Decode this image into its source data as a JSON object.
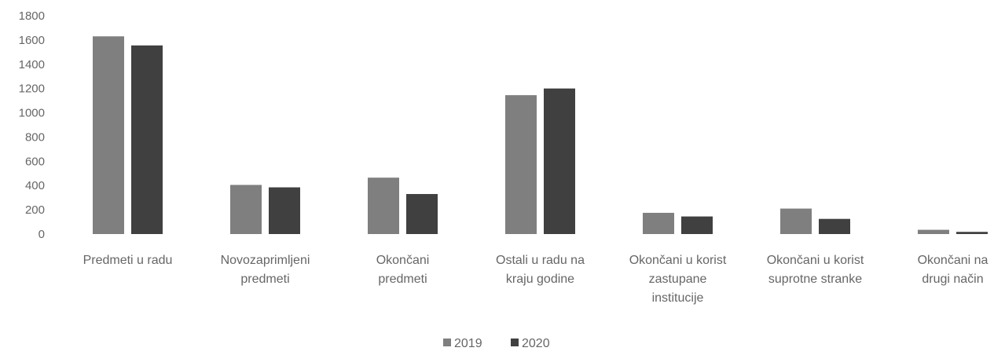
{
  "chart_data": {
    "type": "bar",
    "title": "",
    "xlabel": "",
    "ylabel": "",
    "ylim": [
      0,
      1800
    ],
    "yticks": [
      0,
      200,
      400,
      600,
      800,
      1000,
      1200,
      1400,
      1600,
      1800
    ],
    "grid": false,
    "legend": "bottom",
    "categories": [
      [
        "Predmeti u radu"
      ],
      [
        "Novozaprimljeni",
        "predmeti"
      ],
      [
        "Okončani",
        "predmeti"
      ],
      [
        "Ostali u radu na",
        "kraju godine"
      ],
      [
        "Okončani u korist",
        "zastupane",
        "institucije"
      ],
      [
        "Okončani u korist",
        "suprotne stranke"
      ],
      [
        "Okončani na",
        "drugi način"
      ]
    ],
    "series": [
      {
        "name": "2019",
        "color": "#7f7f7f",
        "values": [
          1630,
          405,
          465,
          1145,
          175,
          210,
          35
        ]
      },
      {
        "name": "2020",
        "color": "#404040",
        "values": [
          1555,
          385,
          330,
          1200,
          145,
          125,
          18
        ]
      }
    ]
  }
}
